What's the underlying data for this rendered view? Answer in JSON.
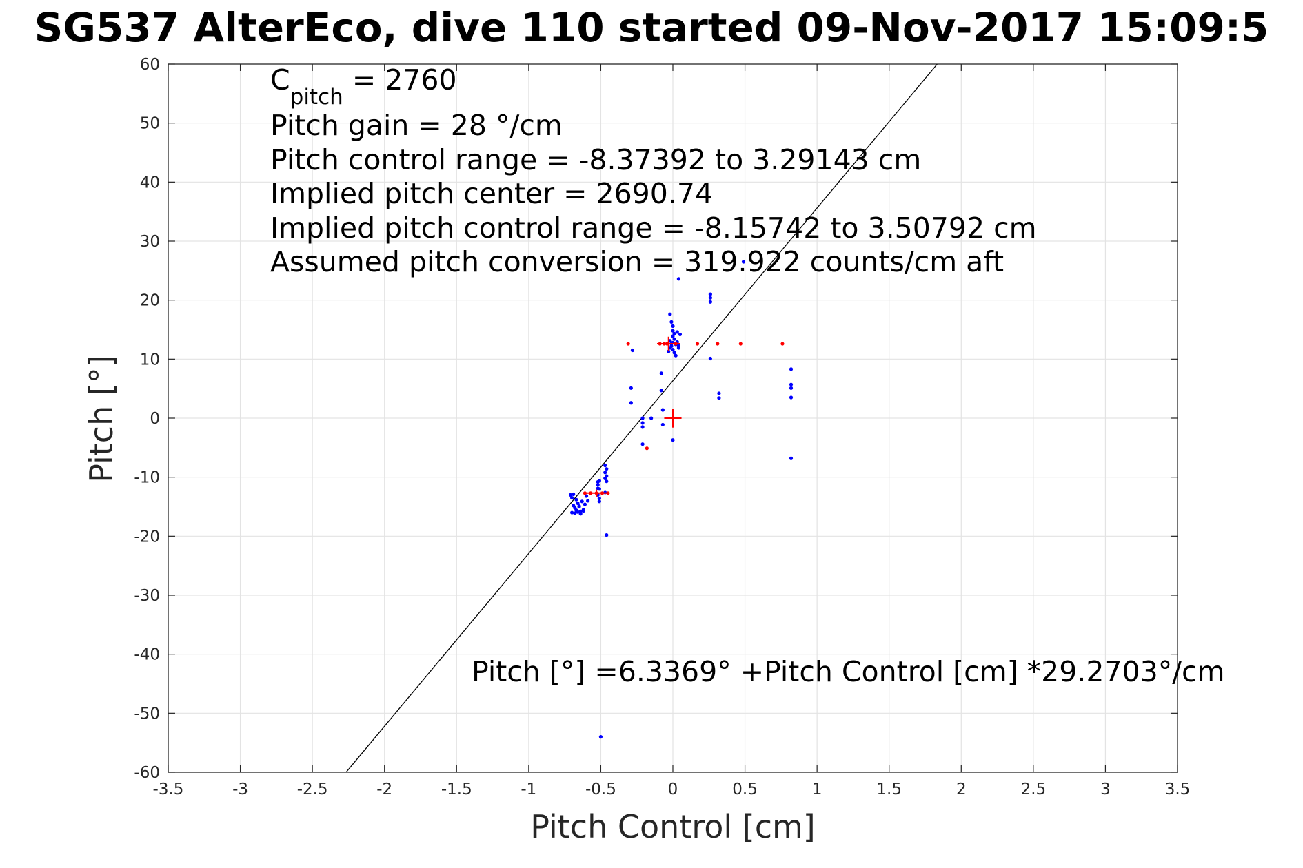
{
  "chart_data": {
    "type": "scatter",
    "title": "SG537 AlterEco, dive 110 started 09-Nov-2017 15:09:5",
    "xlabel": "Pitch Control [cm]",
    "ylabel": "Pitch [°]",
    "xlim": [
      -3.5,
      3.5
    ],
    "ylim": [
      -60,
      60
    ],
    "xticks": [
      -3.5,
      -3,
      -2.5,
      -2,
      -1.5,
      -1,
      -0.5,
      0,
      0.5,
      1,
      1.5,
      2,
      2.5,
      3,
      3.5
    ],
    "xtick_labels": [
      "-3.5",
      "-3",
      "-2.5",
      "-2",
      "-1.5",
      "-1",
      "-0.5",
      "0",
      "0.5",
      "1",
      "1.5",
      "2",
      "2.5",
      "3",
      "3.5"
    ],
    "yticks": [
      -60,
      -50,
      -40,
      -30,
      -20,
      -10,
      0,
      10,
      20,
      30,
      40,
      50,
      60
    ],
    "ytick_labels": [
      "-60",
      "-50",
      "-40",
      "-30",
      "-20",
      "-10",
      "0",
      "10",
      "20",
      "30",
      "40",
      "50",
      "60"
    ],
    "grid": true,
    "annotations": {
      "cpitch_main": "C",
      "cpitch_sub": "pitch",
      "cpitch_value": " = 2760",
      "lines": [
        "Pitch gain = 28 °/cm",
        "Pitch control range = -8.37392 to 3.29143 cm",
        "Implied pitch center = 2690.74",
        "Implied pitch control range = -8.15742 to 3.50792 cm",
        "Assumed pitch conversion = 319.922 counts/cm aft"
      ],
      "fit_equation": "Pitch [°] =6.3369° +Pitch Control [cm] *29.2703°/cm"
    },
    "fit_line": {
      "intercept": 6.3369,
      "slope": 29.2703,
      "color": "#000000"
    },
    "series": [
      {
        "color": "#0000ff",
        "marker": "dot",
        "points": [
          [
            -0.71,
            -13.0
          ],
          [
            -0.7,
            -13.5
          ],
          [
            -0.69,
            -14.8
          ],
          [
            -0.68,
            -15.2
          ],
          [
            -0.67,
            -15.6
          ],
          [
            -0.66,
            -14.4
          ],
          [
            -0.65,
            -15.0
          ],
          [
            -0.64,
            -15.8
          ],
          [
            -0.63,
            -14.1
          ],
          [
            -0.62,
            -15.5
          ],
          [
            -0.61,
            -14.6
          ],
          [
            -0.6,
            -13.2
          ],
          [
            -0.59,
            -14.0
          ],
          [
            -0.7,
            -16.0
          ],
          [
            -0.68,
            -16.1
          ],
          [
            -0.66,
            -15.9
          ],
          [
            -0.64,
            -16.2
          ],
          [
            -0.62,
            -15.7
          ],
          [
            -0.69,
            -12.9
          ],
          [
            -0.67,
            -13.8
          ],
          [
            -0.65,
            -14.9
          ],
          [
            -0.52,
            -10.8
          ],
          [
            -0.52,
            -11.3
          ],
          [
            -0.51,
            -12.0
          ],
          [
            -0.52,
            -13.0
          ],
          [
            -0.51,
            -13.6
          ],
          [
            -0.51,
            -14.1
          ],
          [
            -0.52,
            -11.9
          ],
          [
            -0.51,
            -10.6
          ],
          [
            -0.47,
            -8.0
          ],
          [
            -0.46,
            -8.6
          ],
          [
            -0.47,
            -9.2
          ],
          [
            -0.46,
            -9.8
          ],
          [
            -0.47,
            -10.2
          ],
          [
            -0.46,
            -10.7
          ],
          [
            -0.47,
            -12.6
          ],
          [
            -0.46,
            -19.8
          ],
          [
            -0.28,
            11.5
          ],
          [
            -0.29,
            5.1
          ],
          [
            -0.29,
            2.6
          ],
          [
            -0.21,
            0.0
          ],
          [
            -0.21,
            -0.8
          ],
          [
            -0.21,
            -1.5
          ],
          [
            -0.21,
            -4.4
          ],
          [
            -0.15,
            0.0
          ],
          [
            -0.08,
            7.6
          ],
          [
            -0.08,
            4.7
          ],
          [
            -0.07,
            1.4
          ],
          [
            -0.07,
            -1.1
          ],
          [
            -0.03,
            11.3
          ],
          [
            -0.02,
            11.9
          ],
          [
            -0.01,
            12.2
          ],
          [
            0.0,
            11.6
          ],
          [
            0.01,
            11.1
          ],
          [
            0.0,
            12.8
          ],
          [
            -0.02,
            13.1
          ],
          [
            0.01,
            13.4
          ],
          [
            0.0,
            13.9
          ],
          [
            0.01,
            14.3
          ],
          [
            0.0,
            14.8
          ],
          [
            0.0,
            15.6
          ],
          [
            -0.01,
            16.3
          ],
          [
            -0.02,
            17.6
          ],
          [
            0.02,
            12.5
          ],
          [
            0.03,
            12.9
          ],
          [
            0.04,
            12.3
          ],
          [
            0.04,
            11.9
          ],
          [
            0.02,
            10.6
          ],
          [
            0.05,
            14.2
          ],
          [
            0.03,
            14.6
          ],
          [
            0.04,
            23.6
          ],
          [
            -0.01,
            12.6
          ],
          [
            0.0,
            -3.7
          ],
          [
            0.26,
            21.0
          ],
          [
            0.26,
            20.4
          ],
          [
            0.26,
            19.7
          ],
          [
            0.26,
            10.1
          ],
          [
            0.32,
            4.2
          ],
          [
            0.32,
            3.4
          ],
          [
            0.49,
            26.5
          ],
          [
            0.82,
            8.3
          ],
          [
            0.82,
            5.7
          ],
          [
            0.82,
            5.1
          ],
          [
            0.82,
            3.5
          ],
          [
            0.82,
            -6.8
          ],
          [
            -0.5,
            -54.0
          ]
        ]
      },
      {
        "color": "#ff0000",
        "marker": "dot",
        "points": [
          [
            -0.31,
            12.6
          ],
          [
            -0.09,
            12.6
          ],
          [
            -0.06,
            12.6
          ],
          [
            -0.04,
            12.6
          ],
          [
            0.02,
            12.6
          ],
          [
            0.17,
            12.6
          ],
          [
            0.31,
            12.6
          ],
          [
            0.47,
            12.6
          ],
          [
            0.76,
            12.6
          ],
          [
            -0.61,
            -12.7
          ],
          [
            -0.57,
            -12.7
          ],
          [
            -0.53,
            -12.7
          ],
          [
            -0.49,
            -12.7
          ],
          [
            -0.45,
            -12.7
          ],
          [
            -0.18,
            -5.1
          ]
        ]
      }
    ],
    "crosshairs": [
      {
        "x": 0.0,
        "y": 0.0,
        "dx": 0.06,
        "dy": 1.6,
        "color": "#ff0000"
      },
      {
        "x": -0.03,
        "y": 12.6,
        "dx": 0.08,
        "dy": 1.2,
        "color": "#ff0000"
      },
      {
        "x": -0.53,
        "y": -12.7,
        "dx": 0.08,
        "dy": 0.6,
        "color": "#ff0000"
      }
    ]
  }
}
